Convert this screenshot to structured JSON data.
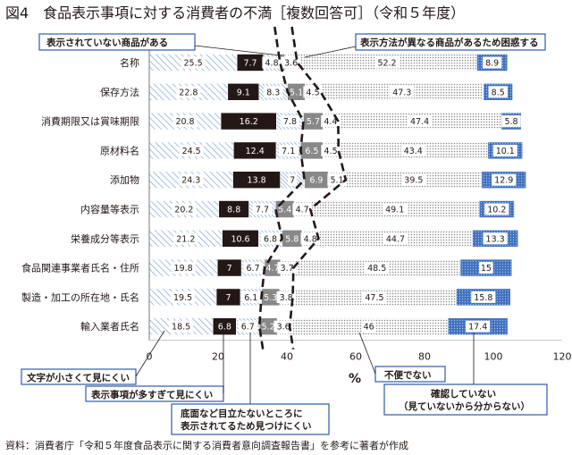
{
  "title": "図4　食品表示事項に対する消費者の不満［複数回答可］（令和５年度）",
  "source": "資料：消費者庁「令和５年度食品表示に関する消費者意向調査報告書」を参考に著者が作成",
  "chart_data": {
    "type": "bar",
    "orientation": "horizontal",
    "stacked": true,
    "categories": [
      "名称",
      "保存方法",
      "消費期限又は賞味期限",
      "原材料名",
      "添加物",
      "内容量等表示",
      "栄養成分等表示",
      "食品関連事業者氏名・住所",
      "製造・加工の所在地・氏名",
      "輸入業者氏名"
    ],
    "series": [
      {
        "name": "文字が小さくて見にくい",
        "color": "#9dbbdc",
        "pattern": "diag-light",
        "values": [
          25.5,
          22.8,
          20.8,
          24.5,
          24.3,
          20.2,
          21.2,
          19.8,
          19.5,
          18.5
        ]
      },
      {
        "name": "表示事項が多すぎて見にくい",
        "color": "#231815",
        "pattern": "solid",
        "values": [
          7.7,
          9.1,
          16.2,
          12.4,
          13.8,
          8.8,
          10.6,
          7,
          7,
          6.8
        ]
      },
      {
        "name": "底面など目立たないところに表示されてるため見つけにくい",
        "color": "#9dbbdc",
        "pattern": "diag-dense",
        "values": [
          4.8,
          8.3,
          7.8,
          7.1,
          7,
          7.7,
          6.8,
          6.7,
          6.1,
          6.7
        ]
      },
      {
        "name": "表示されていない商品がある",
        "color": "#888888",
        "pattern": "solid",
        "values": [
          1.4,
          5.1,
          5.7,
          6.5,
          6.9,
          5.4,
          5.8,
          4.7,
          5.3,
          5.2
        ]
      },
      {
        "name": "表示方法が異なる商品があるため困惑する",
        "color": "#dddddd",
        "pattern": "dots-light",
        "values": [
          3.6,
          4.5,
          4.4,
          4.5,
          5.1,
          4.7,
          4.8,
          3.7,
          3.8,
          3.6
        ]
      },
      {
        "name": "不便でない",
        "color": "#bbbbbb",
        "pattern": "dots-gray",
        "values": [
          52.2,
          47.3,
          47.4,
          43.4,
          39.5,
          49.1,
          44.7,
          48.5,
          47.5,
          46
        ]
      },
      {
        "name": "確認していない（見ていないから分からない）",
        "color": "#4a79c4",
        "pattern": "dots-blue",
        "values": [
          8.9,
          8.5,
          5.8,
          10.1,
          12.9,
          10.2,
          13.3,
          15,
          15.8,
          17.4
        ]
      }
    ],
    "labels": {
      "series0": [
        "25.5",
        "22.8",
        "20.8",
        "24.5",
        "24.3",
        "20.2",
        "21.2",
        "19.8",
        "19.5",
        "18.5"
      ],
      "series1": [
        "7.7",
        "9.1",
        "16.2",
        "12.4",
        "13.8",
        "8.8",
        "10.6",
        "7",
        "7",
        "6.8"
      ],
      "series2": [
        "4.8",
        "8.3",
        "7.8",
        "7.1",
        "7",
        "7.7",
        "6.8",
        "6.7",
        "6.1",
        "6.7"
      ],
      "series3": [
        "",
        "5.1",
        "5.7",
        "6.5",
        "6.9",
        "5.4",
        "5.8",
        "4.7",
        "5.3",
        "5.2"
      ],
      "series4": [
        "3.6",
        "4.5",
        "4.4",
        "4.5",
        "5.1",
        "4.7",
        "4.8",
        "3.7",
        "3.8",
        "3.6"
      ],
      "series5": [
        "52.2",
        "47.3",
        "47.4",
        "43.4",
        "39.5",
        "49.1",
        "44.7",
        "48.5",
        "47.5",
        "46"
      ],
      "series6": [
        "8.9",
        "8.5",
        "5.8",
        "10.1",
        "12.9",
        "10.2",
        "13.3",
        "15",
        "15.8",
        "17.4"
      ]
    },
    "xlim": [
      0,
      120
    ],
    "xticks": [
      0,
      20,
      40,
      60,
      80,
      100,
      120
    ],
    "xlabel": "%",
    "callouts": {
      "top_left": "表示されていない商品がある",
      "top_right": "表示方法が異なる商品があるため困惑する",
      "bottom_small": "文字が小さくて見にくい",
      "bottom_many": "表示事項が多すぎて見にくい",
      "bottom_hidden_1": "底面など目立たないところに",
      "bottom_hidden_2": "表示されてるため見つけにくい",
      "bottom_inconvenient": "不便でない",
      "bottom_unchecked_1": "確認していない",
      "bottom_unchecked_2": "（見ていないから分からない）"
    }
  }
}
